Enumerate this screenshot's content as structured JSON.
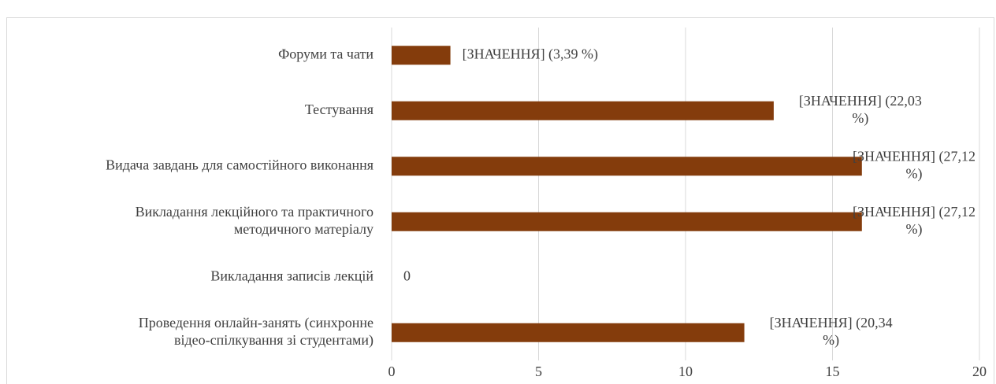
{
  "chart_data": {
    "type": "barh",
    "categories": [
      "Форуми та чати",
      "Тестування",
      "Видача завдань для самостійного виконання",
      "Викладання лекційного та практичного\nметодичного матеріалу",
      "Викладання записів лекцій",
      "Проведення онлайн-занять (синхронне\nвідео-спілкування зі студентами)"
    ],
    "values": [
      2,
      13,
      16,
      16,
      0,
      12
    ],
    "value_labels": [
      "[ЗНАЧЕННЯ] (3,39 %)",
      "[ЗНАЧЕННЯ] (22,03\n%)",
      "[ЗНАЧЕННЯ] (27,12\n%)",
      "[ЗНАЧЕННЯ] (27,12\n%)",
      "0",
      "[ЗНАЧЕННЯ] (20,34\n%)"
    ],
    "color": "#843c0c",
    "xlim": [
      0,
      20
    ],
    "xticks": [
      0,
      5,
      10,
      15,
      20
    ],
    "grid": true
  }
}
